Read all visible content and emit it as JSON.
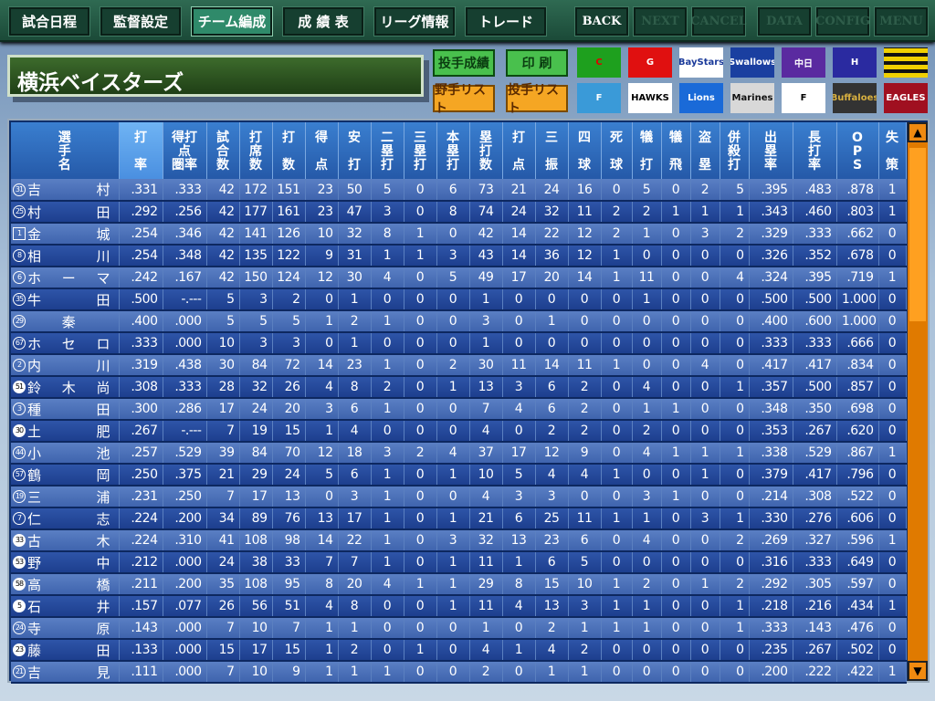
{
  "nav": {
    "items": [
      {
        "label": "試合日程",
        "state": "normal"
      },
      {
        "label": "監督設定",
        "state": "normal"
      },
      {
        "label": "チーム編成",
        "state": "active"
      },
      {
        "label": "成 績 表",
        "state": "normal"
      },
      {
        "label": "リーグ情報",
        "state": "normal"
      },
      {
        "label": "トレード",
        "state": "normal"
      }
    ],
    "sys": [
      {
        "label": "BACK",
        "state": "enabled"
      },
      {
        "label": "NEXT",
        "state": "disabled"
      },
      {
        "label": "CANCEL",
        "state": "disabled"
      },
      {
        "label": "DATA",
        "state": "disabled"
      },
      {
        "label": "CONFIG",
        "state": "disabled"
      },
      {
        "label": "MENU",
        "state": "disabled"
      }
    ]
  },
  "team_name": "横浜ベイスターズ",
  "actions": {
    "pitcher_stats": "投手成績",
    "print": "印 刷",
    "fielder_list": "野手リスト",
    "pitcher_list": "投手リスト"
  },
  "team_logos": [
    {
      "name": "Carp",
      "text": "C",
      "bg": "#1ea01e",
      "fg": "#e00000"
    },
    {
      "name": "Giants",
      "text": "G",
      "bg": "#e01010",
      "fg": "#fff"
    },
    {
      "name": "BayStars",
      "text": "BayStars",
      "bg": "#fff",
      "fg": "#1a3a9a"
    },
    {
      "name": "Swallows",
      "text": "Swallows",
      "bg": "#1a3fa0",
      "fg": "#fff"
    },
    {
      "name": "Dragons",
      "text": "中日",
      "bg": "#5a2aa0",
      "fg": "#fff"
    },
    {
      "name": "Tigers",
      "text": "H",
      "bg": "#2a2aa0",
      "fg": "#fff"
    },
    {
      "name": "Tigers-stripe",
      "text": "",
      "bg": "#f0d000",
      "fg": "#000"
    },
    {
      "name": "Fighters",
      "text": "F",
      "bg": "#3a9ad8",
      "fg": "#fff"
    },
    {
      "name": "Hawks",
      "text": "HAWKS",
      "bg": "#fff",
      "fg": "#000"
    },
    {
      "name": "Lions",
      "text": "Lions",
      "bg": "#1a6ad8",
      "fg": "#fff"
    },
    {
      "name": "Marines",
      "text": "Marines",
      "bg": "#d8d8d8",
      "fg": "#111"
    },
    {
      "name": "Fighters2",
      "text": "F",
      "bg": "#fff",
      "fg": "#000"
    },
    {
      "name": "Buffaloes",
      "text": "Buffaloes",
      "bg": "#333",
      "fg": "#d8b040"
    },
    {
      "name": "Eagles",
      "text": "EAGLES",
      "bg": "#a01020",
      "fg": "#fff"
    }
  ],
  "table": {
    "headers": [
      "選\n手\n名",
      "打\n\n率",
      "得打\n点\n圏率",
      "試\n合\n数",
      "打\n席\n数",
      "打\n\n数",
      "得\n\n点",
      "安\n\n打",
      "二\n塁\n打",
      "三\n塁\n打",
      "本\n塁\n打",
      "塁\n打\n数",
      "打\n\n点",
      "三\n\n振",
      "四\n\n球",
      "死\n\n球",
      "犠\n\n打",
      "犠\n\n飛",
      "盗\n\n塁",
      "併\n殺\n打",
      "出\n塁\n率",
      "長\n打\n率",
      "O\nP\nS",
      "失\n\n策"
    ],
    "selected_column": 1,
    "rows": [
      {
        "no": "31",
        "badge": "o",
        "name": [
          "吉",
          "村"
        ],
        "s": [
          ".331",
          ".333",
          "42",
          "172",
          "151",
          "23",
          "50",
          "5",
          "0",
          "6",
          "73",
          "21",
          "24",
          "16",
          "0",
          "5",
          "0",
          "2",
          "5",
          ".395",
          ".483",
          ".878",
          "1"
        ]
      },
      {
        "no": "25",
        "badge": "o",
        "name": [
          "村",
          "田"
        ],
        "s": [
          ".292",
          ".256",
          "42",
          "177",
          "161",
          "23",
          "47",
          "3",
          "0",
          "8",
          "74",
          "24",
          "32",
          "11",
          "2",
          "2",
          "1",
          "1",
          "1",
          ".343",
          ".460",
          ".803",
          "1"
        ]
      },
      {
        "no": "1",
        "badge": "sq",
        "name": [
          "金",
          "城"
        ],
        "s": [
          ".254",
          ".346",
          "42",
          "141",
          "126",
          "10",
          "32",
          "8",
          "1",
          "0",
          "42",
          "14",
          "22",
          "12",
          "2",
          "1",
          "0",
          "3",
          "2",
          ".329",
          ".333",
          ".662",
          "0"
        ]
      },
      {
        "no": "8",
        "badge": "o",
        "name": [
          "相",
          "川"
        ],
        "s": [
          ".254",
          ".348",
          "42",
          "135",
          "122",
          "9",
          "31",
          "1",
          "1",
          "3",
          "43",
          "14",
          "36",
          "12",
          "1",
          "0",
          "0",
          "0",
          "0",
          ".326",
          ".352",
          ".678",
          "0"
        ]
      },
      {
        "no": "6",
        "badge": "o",
        "name": [
          "ホ",
          "ー",
          "マ"
        ],
        "s": [
          ".242",
          ".167",
          "42",
          "150",
          "124",
          "12",
          "30",
          "4",
          "0",
          "5",
          "49",
          "17",
          "20",
          "14",
          "1",
          "11",
          "0",
          "0",
          "4",
          ".324",
          ".395",
          ".719",
          "1"
        ]
      },
      {
        "no": "35",
        "badge": "o",
        "name": [
          "牛",
          "田"
        ],
        "s": [
          ".500",
          "-.---",
          "5",
          "3",
          "2",
          "0",
          "1",
          "0",
          "0",
          "0",
          "1",
          "0",
          "0",
          "0",
          "0",
          "1",
          "0",
          "0",
          "0",
          ".500",
          ".500",
          "1.000",
          "0"
        ]
      },
      {
        "no": "29",
        "badge": "o",
        "name": [
          "秦"
        ],
        "s": [
          ".400",
          ".000",
          "5",
          "5",
          "5",
          "1",
          "2",
          "1",
          "0",
          "0",
          "3",
          "0",
          "1",
          "0",
          "0",
          "0",
          "0",
          "0",
          "0",
          ".400",
          ".600",
          "1.000",
          "0"
        ]
      },
      {
        "no": "67",
        "badge": "o",
        "name": [
          "ホ",
          "セ",
          "ロ"
        ],
        "s": [
          ".333",
          ".000",
          "10",
          "3",
          "3",
          "0",
          "1",
          "0",
          "0",
          "0",
          "1",
          "0",
          "0",
          "0",
          "0",
          "0",
          "0",
          "0",
          "0",
          ".333",
          ".333",
          ".666",
          "0"
        ]
      },
      {
        "no": "2",
        "badge": "o",
        "name": [
          "内",
          "川"
        ],
        "s": [
          ".319",
          ".438",
          "30",
          "84",
          "72",
          "14",
          "23",
          "1",
          "0",
          "2",
          "30",
          "11",
          "14",
          "11",
          "1",
          "0",
          "0",
          "4",
          "0",
          ".417",
          ".417",
          ".834",
          "0"
        ]
      },
      {
        "no": "51",
        "badge": "f",
        "name": [
          "鈴",
          "木",
          "尚"
        ],
        "s": [
          ".308",
          ".333",
          "28",
          "32",
          "26",
          "4",
          "8",
          "2",
          "0",
          "1",
          "13",
          "3",
          "6",
          "2",
          "0",
          "4",
          "0",
          "0",
          "1",
          ".357",
          ".500",
          ".857",
          "0"
        ]
      },
      {
        "no": "3",
        "badge": "o",
        "name": [
          "種",
          "田"
        ],
        "s": [
          ".300",
          ".286",
          "17",
          "24",
          "20",
          "3",
          "6",
          "1",
          "0",
          "0",
          "7",
          "4",
          "6",
          "2",
          "0",
          "1",
          "1",
          "0",
          "0",
          ".348",
          ".350",
          ".698",
          "0"
        ]
      },
      {
        "no": "30",
        "badge": "f",
        "name": [
          "土",
          "肥"
        ],
        "s": [
          ".267",
          "-.---",
          "7",
          "19",
          "15",
          "1",
          "4",
          "0",
          "0",
          "0",
          "4",
          "0",
          "2",
          "2",
          "0",
          "2",
          "0",
          "0",
          "0",
          ".353",
          ".267",
          ".620",
          "0"
        ]
      },
      {
        "no": "44",
        "badge": "o",
        "name": [
          "小",
          "池"
        ],
        "s": [
          ".257",
          ".529",
          "39",
          "84",
          "70",
          "12",
          "18",
          "3",
          "2",
          "4",
          "37",
          "17",
          "12",
          "9",
          "0",
          "4",
          "1",
          "1",
          "1",
          ".338",
          ".529",
          ".867",
          "1"
        ]
      },
      {
        "no": "57",
        "badge": "o",
        "name": [
          "鶴",
          "岡"
        ],
        "s": [
          ".250",
          ".375",
          "21",
          "29",
          "24",
          "5",
          "6",
          "1",
          "0",
          "1",
          "10",
          "5",
          "4",
          "4",
          "1",
          "0",
          "0",
          "1",
          "0",
          ".379",
          ".417",
          ".796",
          "0"
        ]
      },
      {
        "no": "19",
        "badge": "o",
        "name": [
          "三",
          "浦"
        ],
        "s": [
          ".231",
          ".250",
          "7",
          "17",
          "13",
          "0",
          "3",
          "1",
          "0",
          "0",
          "4",
          "3",
          "3",
          "0",
          "0",
          "3",
          "1",
          "0",
          "0",
          ".214",
          ".308",
          ".522",
          "0"
        ]
      },
      {
        "no": "7",
        "badge": "o",
        "name": [
          "仁",
          "志"
        ],
        "s": [
          ".224",
          ".200",
          "34",
          "89",
          "76",
          "13",
          "17",
          "1",
          "0",
          "1",
          "21",
          "6",
          "25",
          "11",
          "1",
          "1",
          "0",
          "3",
          "1",
          ".330",
          ".276",
          ".606",
          "0"
        ]
      },
      {
        "no": "33",
        "badge": "f",
        "name": [
          "古",
          "木"
        ],
        "s": [
          ".224",
          ".310",
          "41",
          "108",
          "98",
          "14",
          "22",
          "1",
          "0",
          "3",
          "32",
          "13",
          "23",
          "6",
          "0",
          "4",
          "0",
          "0",
          "2",
          ".269",
          ".327",
          ".596",
          "1"
        ]
      },
      {
        "no": "53",
        "badge": "f",
        "name": [
          "野",
          "中"
        ],
        "s": [
          ".212",
          ".000",
          "24",
          "38",
          "33",
          "7",
          "7",
          "1",
          "0",
          "1",
          "11",
          "1",
          "6",
          "5",
          "0",
          "0",
          "0",
          "0",
          "0",
          ".316",
          ".333",
          ".649",
          "0"
        ]
      },
      {
        "no": "58",
        "badge": "f",
        "name": [
          "高",
          "橋"
        ],
        "s": [
          ".211",
          ".200",
          "35",
          "108",
          "95",
          "8",
          "20",
          "4",
          "1",
          "1",
          "29",
          "8",
          "15",
          "10",
          "1",
          "2",
          "0",
          "1",
          "2",
          ".292",
          ".305",
          ".597",
          "0"
        ]
      },
      {
        "no": "5",
        "badge": "f",
        "name": [
          "石",
          "井"
        ],
        "s": [
          ".157",
          ".077",
          "26",
          "56",
          "51",
          "4",
          "8",
          "0",
          "0",
          "1",
          "11",
          "4",
          "13",
          "3",
          "1",
          "1",
          "0",
          "0",
          "1",
          ".218",
          ".216",
          ".434",
          "1"
        ]
      },
      {
        "no": "24",
        "badge": "o",
        "name": [
          "寺",
          "原"
        ],
        "s": [
          ".143",
          ".000",
          "7",
          "10",
          "7",
          "1",
          "1",
          "0",
          "0",
          "0",
          "1",
          "0",
          "2",
          "1",
          "1",
          "1",
          "0",
          "0",
          "1",
          ".333",
          ".143",
          ".476",
          "0"
        ]
      },
      {
        "no": "23",
        "badge": "f",
        "name": [
          "藤",
          "田"
        ],
        "s": [
          ".133",
          ".000",
          "15",
          "17",
          "15",
          "1",
          "2",
          "0",
          "1",
          "0",
          "4",
          "1",
          "4",
          "2",
          "0",
          "0",
          "0",
          "0",
          "0",
          ".235",
          ".267",
          ".502",
          "0"
        ]
      },
      {
        "no": "21",
        "badge": "o",
        "name": [
          "吉",
          "見"
        ],
        "s": [
          ".111",
          ".000",
          "7",
          "10",
          "9",
          "1",
          "1",
          "1",
          "0",
          "0",
          "2",
          "0",
          "1",
          "1",
          "0",
          "0",
          "0",
          "0",
          "0",
          ".200",
          ".222",
          ".422",
          "1"
        ]
      }
    ]
  },
  "scrollbar": {
    "up": "▲",
    "down": "▼",
    "position": 0
  }
}
